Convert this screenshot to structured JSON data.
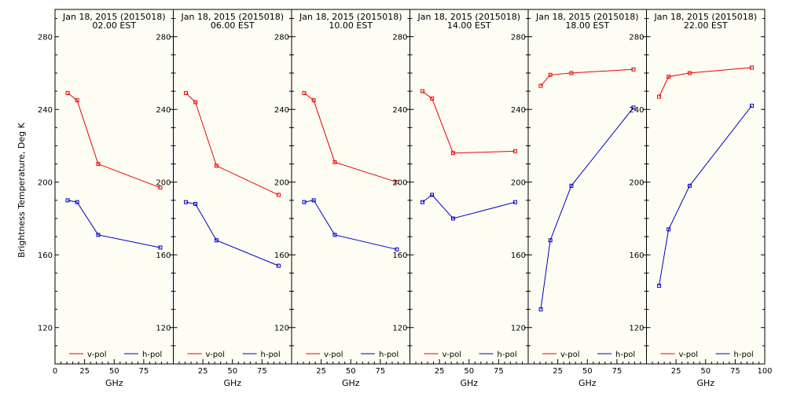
{
  "figure": {
    "ylabel": "Brightness Temperature, Deg K"
  },
  "chart_data": [
    {
      "type": "line",
      "title": "Jan 18, 2015 (2015018)",
      "subtitle": "02.00 EST",
      "xlabel": "GHz",
      "xlim": [
        0,
        100
      ],
      "ylim": [
        100,
        295
      ],
      "xticks": [
        0,
        25,
        50,
        75
      ],
      "xtick_labels": [
        "0",
        "25",
        "50",
        "75"
      ],
      "yticks": [
        120,
        160,
        200,
        240,
        280
      ],
      "colors": {
        "v-pol": "#ee0000",
        "h-pol": "#0000cc"
      },
      "legend": "bottom",
      "series": [
        {
          "name": "v-pol",
          "x": [
            10.65,
            18.7,
            36.5,
            89
          ],
          "y": [
            249,
            245,
            210,
            197
          ]
        },
        {
          "name": "h-pol",
          "x": [
            10.65,
            18.7,
            36.5,
            89
          ],
          "y": [
            190,
            189,
            171,
            164
          ]
        }
      ]
    },
    {
      "type": "line",
      "title": "Jan 18, 2015 (2015018)",
      "subtitle": "06.00 EST",
      "xlabel": "GHz",
      "xlim": [
        0,
        100
      ],
      "ylim": [
        100,
        295
      ],
      "xticks": [
        25,
        50,
        75
      ],
      "xtick_labels": [
        "25",
        "50",
        "75"
      ],
      "yticks": [
        120,
        160,
        200,
        240,
        280
      ],
      "colors": {
        "v-pol": "#ee0000",
        "h-pol": "#0000cc"
      },
      "legend": "bottom",
      "series": [
        {
          "name": "v-pol",
          "x": [
            10.65,
            18.7,
            36.5,
            89
          ],
          "y": [
            249,
            244,
            209,
            193
          ]
        },
        {
          "name": "h-pol",
          "x": [
            10.65,
            18.7,
            36.5,
            89
          ],
          "y": [
            189,
            188,
            168,
            154
          ]
        }
      ]
    },
    {
      "type": "line",
      "title": "Jan 18, 2015 (2015018)",
      "subtitle": "10.00 EST",
      "xlabel": "GHz",
      "xlim": [
        0,
        100
      ],
      "ylim": [
        100,
        295
      ],
      "xticks": [
        25,
        50,
        75
      ],
      "xtick_labels": [
        "25",
        "50",
        "75"
      ],
      "yticks": [
        120,
        160,
        200,
        240,
        280
      ],
      "colors": {
        "v-pol": "#ee0000",
        "h-pol": "#0000cc"
      },
      "legend": "bottom",
      "series": [
        {
          "name": "v-pol",
          "x": [
            10.65,
            18.7,
            36.5,
            89
          ],
          "y": [
            249,
            245,
            211,
            200
          ]
        },
        {
          "name": "h-pol",
          "x": [
            10.65,
            18.7,
            36.5,
            89
          ],
          "y": [
            189,
            190,
            171,
            163
          ]
        }
      ]
    },
    {
      "type": "line",
      "title": "Jan 18, 2015 (2015018)",
      "subtitle": "14.00 EST",
      "xlabel": "GHz",
      "xlim": [
        0,
        100
      ],
      "ylim": [
        100,
        295
      ],
      "xticks": [
        25,
        50,
        75
      ],
      "xtick_labels": [
        "25",
        "50",
        "75"
      ],
      "yticks": [
        120,
        160,
        200,
        240,
        280
      ],
      "colors": {
        "v-pol": "#ee0000",
        "h-pol": "#0000cc"
      },
      "legend": "bottom",
      "series": [
        {
          "name": "v-pol",
          "x": [
            10.65,
            18.7,
            36.5,
            89
          ],
          "y": [
            250,
            246,
            216,
            217
          ]
        },
        {
          "name": "h-pol",
          "x": [
            10.65,
            18.7,
            36.5,
            89
          ],
          "y": [
            189,
            193,
            180,
            189
          ]
        }
      ]
    },
    {
      "type": "line",
      "title": "Jan 18, 2015 (2015018)",
      "subtitle": "18.00 EST",
      "xlabel": "GHz",
      "xlim": [
        0,
        100
      ],
      "ylim": [
        100,
        295
      ],
      "xticks": [
        25,
        50,
        75
      ],
      "xtick_labels": [
        "25",
        "50",
        "75"
      ],
      "yticks": [
        120,
        160,
        200,
        240,
        280
      ],
      "colors": {
        "v-pol": "#ee0000",
        "h-pol": "#0000cc"
      },
      "legend": "bottom",
      "series": [
        {
          "name": "v-pol",
          "x": [
            10.65,
            18.7,
            36.5,
            89
          ],
          "y": [
            253,
            259,
            260,
            262
          ]
        },
        {
          "name": "h-pol",
          "x": [
            10.65,
            18.7,
            36.5,
            89
          ],
          "y": [
            130,
            168,
            198,
            241
          ]
        }
      ]
    },
    {
      "type": "line",
      "title": "Jan 18, 2015 (2015018)",
      "subtitle": "22.00 EST",
      "xlabel": "GHz",
      "xlim": [
        0,
        100
      ],
      "ylim": [
        100,
        295
      ],
      "xticks": [
        25,
        50,
        75,
        100
      ],
      "xtick_labels": [
        "25",
        "50",
        "75",
        "100"
      ],
      "yticks": [
        120,
        160,
        200,
        240,
        280
      ],
      "colors": {
        "v-pol": "#ee0000",
        "h-pol": "#0000cc"
      },
      "legend": "bottom",
      "series": [
        {
          "name": "v-pol",
          "x": [
            10.65,
            18.7,
            36.5,
            89
          ],
          "y": [
            247,
            258,
            260,
            263
          ]
        },
        {
          "name": "h-pol",
          "x": [
            10.65,
            18.7,
            36.5,
            89
          ],
          "y": [
            143,
            174,
            198,
            242
          ]
        }
      ]
    }
  ]
}
